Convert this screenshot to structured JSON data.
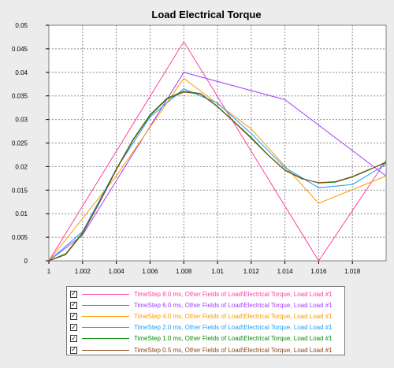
{
  "chart_data": {
    "type": "line",
    "title": "Load Electrical Torque",
    "xlim": [
      1,
      1.02
    ],
    "ylim": [
      0,
      0.05
    ],
    "x_ticks": [
      1,
      1.002,
      1.004,
      1.006,
      1.008,
      1.01,
      1.012,
      1.014,
      1.016,
      1.018
    ],
    "x_tick_labels": [
      "1",
      "1.002",
      "1.004",
      "1.006",
      "1.008",
      "1.01",
      "1.012",
      "1.014",
      "1.016",
      "1.018"
    ],
    "y_ticks": [
      0,
      0.005,
      0.01,
      0.015,
      0.02,
      0.025,
      0.03,
      0.035,
      0.04,
      0.045,
      0.05
    ],
    "y_tick_labels": [
      "0",
      "0.005",
      "0.01",
      "0.015",
      "0.02",
      "0.025",
      "0.03",
      "0.035",
      "0.04",
      "0.045",
      "0.05"
    ],
    "grid": true,
    "legend_position": "bottom",
    "series": [
      {
        "name": "TimeStep 8.0 ms, Other Fields of Load\\Electrical Torque, Load Load #1",
        "color": "#ff3fa0",
        "x": [
          1,
          1.008,
          1.016,
          1.02
        ],
        "y": [
          0,
          0.0465,
          0,
          0.0213
        ]
      },
      {
        "name": "TimeStep 6.0 ms, Other Fields of Load\\Electrical Torque, Load Load #1",
        "color": "#a23cff",
        "x": [
          1,
          1.002,
          1.008,
          1.014,
          1.02
        ],
        "y": [
          0,
          0.0055,
          0.04,
          0.0342,
          0.018
        ]
      },
      {
        "name": "TimeStep 4.0 ms, Other Fields of Load\\Electrical Torque, Load Load #1",
        "color": "#ff9900",
        "x": [
          1,
          1.004,
          1.008,
          1.012,
          1.016,
          1.02
        ],
        "y": [
          0,
          0.018,
          0.0387,
          0.028,
          0.0122,
          0.018
        ]
      },
      {
        "name": "TimeStep 2.0 ms, Other Fields of Load\\Electrical Torque, Load Load #1",
        "color": "#1a9fff",
        "x": [
          1,
          1.002,
          1.004,
          1.006,
          1.008,
          1.01,
          1.012,
          1.014,
          1.016,
          1.018,
          1.02
        ],
        "y": [
          0,
          0.0062,
          0.0195,
          0.0305,
          0.0365,
          0.0335,
          0.027,
          0.0198,
          0.0155,
          0.0162,
          0.0205
        ]
      },
      {
        "name": "TimeStep 1.0 ms, Other Fields of Load\\Electrical Torque, Load Load #1",
        "color": "#0a8a0a",
        "x": [
          1,
          1.001,
          1.002,
          1.003,
          1.004,
          1.005,
          1.006,
          1.007,
          1.008,
          1.009,
          1.01,
          1.011,
          1.012,
          1.013,
          1.014,
          1.015,
          1.016,
          1.017,
          1.018,
          1.019,
          1.02
        ],
        "y": [
          0,
          0.0015,
          0.006,
          0.0125,
          0.0195,
          0.0258,
          0.031,
          0.0345,
          0.036,
          0.0355,
          0.0328,
          0.0295,
          0.0262,
          0.0225,
          0.0193,
          0.0175,
          0.0165,
          0.0167,
          0.0178,
          0.0193,
          0.021
        ]
      },
      {
        "name": "TimeStep 0.5 ms, Other Fields of Load\\Electrical Torque, Load Load #1",
        "color": "#8b4513",
        "x": [
          1,
          1.001,
          1.002,
          1.003,
          1.004,
          1.005,
          1.006,
          1.007,
          1.008,
          1.009,
          1.01,
          1.011,
          1.012,
          1.013,
          1.014,
          1.015,
          1.016,
          1.017,
          1.018,
          1.019,
          1.02
        ],
        "y": [
          0,
          0.0013,
          0.0058,
          0.0123,
          0.0193,
          0.0256,
          0.0308,
          0.0343,
          0.0358,
          0.0354,
          0.0327,
          0.0294,
          0.026,
          0.0224,
          0.0192,
          0.0174,
          0.0166,
          0.0168,
          0.0179,
          0.0194,
          0.0208
        ]
      }
    ]
  }
}
